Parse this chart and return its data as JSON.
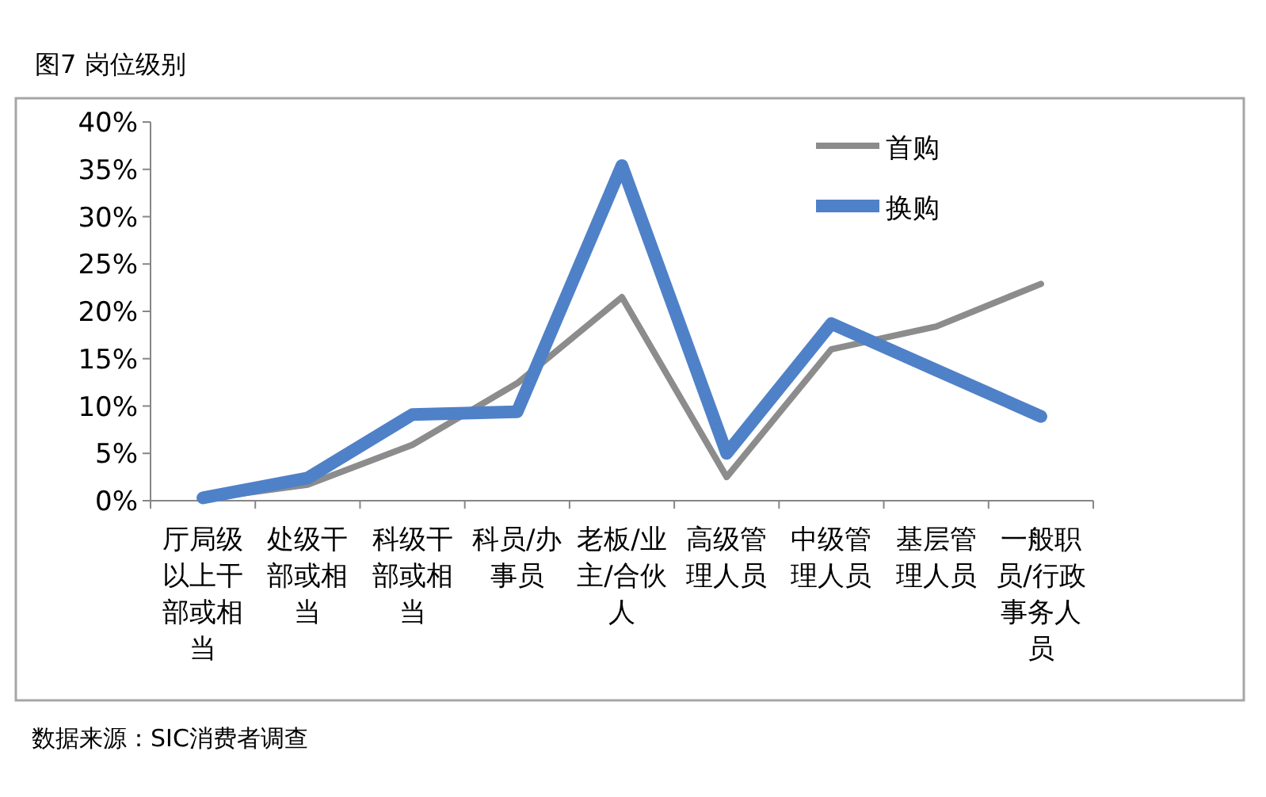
{
  "chart_data": {
    "type": "line",
    "title": "图7 岗位级别",
    "categories": [
      "厅局级以上干部或相当",
      "处级干部或相当",
      "科级干部或相当",
      "科员/办事员",
      "老板/业主/合伙人",
      "高级管理人员",
      "中级管理人员",
      "基层管理人员",
      "一般职员/行政事务人员"
    ],
    "series": [
      {
        "name": "首购",
        "color": "#8c8c8c",
        "values": [
          0.2,
          1.7,
          5.9,
          12.4,
          21.5,
          2.5,
          16.0,
          18.4,
          22.9
        ]
      },
      {
        "name": "换购",
        "color": "#4f81c8",
        "values": [
          0.3,
          2.4,
          9.1,
          9.4,
          35.4,
          5.0,
          18.7,
          13.8,
          8.9
        ]
      }
    ],
    "ylim": [
      0,
      40
    ],
    "yticks": [
      {
        "value": 0,
        "label": "0%"
      },
      {
        "value": 5,
        "label": "5%"
      },
      {
        "value": 10,
        "label": "10%"
      },
      {
        "value": 15,
        "label": "15%"
      },
      {
        "value": 20,
        "label": "20%"
      },
      {
        "value": 25,
        "label": "25%"
      },
      {
        "value": 30,
        "label": "30%"
      },
      {
        "value": 35,
        "label": "35%"
      },
      {
        "value": 40,
        "label": "40%"
      }
    ],
    "legend": "top right",
    "grid": false,
    "marker": "none",
    "line_style": "solid",
    "annotations": [
      "数据来源：SIC消费者调查"
    ]
  }
}
